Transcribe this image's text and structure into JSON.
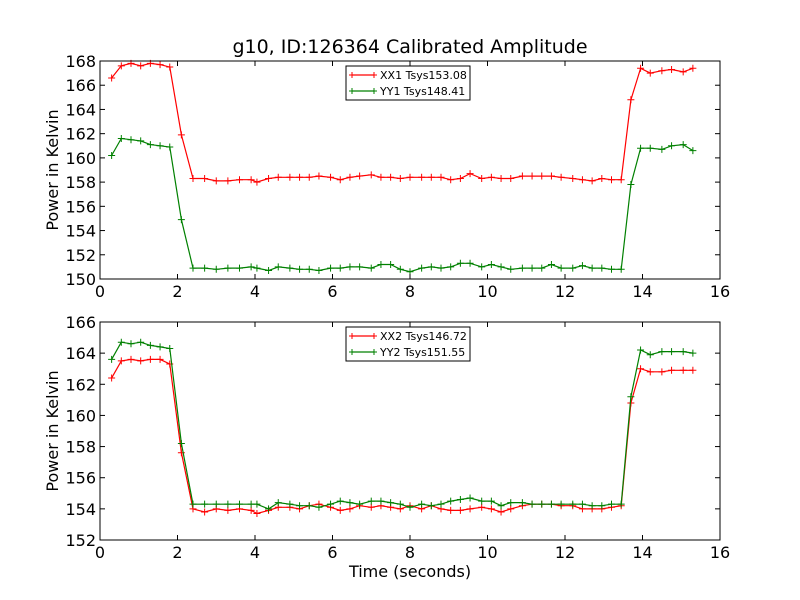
{
  "figure": {
    "title": "g10, ID:126364 Calibrated Amplitude"
  },
  "chart_data": [
    {
      "type": "line",
      "title": "g10, ID:126364 Calibrated Amplitude",
      "xlabel": "",
      "ylabel": "Power in Kelvin",
      "xlim": [
        0,
        16
      ],
      "ylim": [
        150,
        168
      ],
      "xticks": [
        0,
        2,
        4,
        6,
        8,
        10,
        12,
        14,
        16
      ],
      "yticks": [
        150,
        152,
        154,
        156,
        158,
        160,
        162,
        164,
        166,
        168
      ],
      "grid": false,
      "legend_position": "top-center",
      "x": [
        0.3,
        0.55,
        0.8,
        1.05,
        1.3,
        1.55,
        1.8,
        2.1,
        2.4,
        2.7,
        3.0,
        3.3,
        3.6,
        3.9,
        4.05,
        4.35,
        4.6,
        4.9,
        5.15,
        5.4,
        5.65,
        5.95,
        6.2,
        6.45,
        6.7,
        7.0,
        7.25,
        7.5,
        7.75,
        8.0,
        8.3,
        8.55,
        8.8,
        9.05,
        9.3,
        9.55,
        9.85,
        10.1,
        10.35,
        10.6,
        10.9,
        11.15,
        11.4,
        11.65,
        11.9,
        12.2,
        12.45,
        12.7,
        12.95,
        13.2,
        13.45,
        13.7,
        13.95,
        14.2,
        14.5,
        14.75,
        15.05,
        15.3
      ],
      "series": [
        {
          "name": "XX1 Tsys153.08",
          "color": "#ff0000",
          "values": [
            166.6,
            167.6,
            167.8,
            167.6,
            167.8,
            167.7,
            167.5,
            161.9,
            158.3,
            158.3,
            158.1,
            158.1,
            158.2,
            158.2,
            158.0,
            158.3,
            158.4,
            158.4,
            158.4,
            158.4,
            158.5,
            158.4,
            158.2,
            158.4,
            158.5,
            158.6,
            158.4,
            158.4,
            158.3,
            158.4,
            158.4,
            158.4,
            158.4,
            158.2,
            158.3,
            158.7,
            158.3,
            158.4,
            158.3,
            158.3,
            158.5,
            158.5,
            158.5,
            158.5,
            158.4,
            158.3,
            158.2,
            158.1,
            158.3,
            158.2,
            158.2,
            164.8,
            167.4,
            167.0,
            167.2,
            167.3,
            167.1,
            167.4
          ]
        },
        {
          "name": "YY1 Tsys148.41",
          "color": "#008000",
          "values": [
            160.2,
            161.6,
            161.5,
            161.4,
            161.1,
            161.0,
            160.9,
            154.9,
            150.9,
            150.9,
            150.8,
            150.9,
            150.9,
            151.0,
            150.9,
            150.7,
            151.0,
            150.9,
            150.8,
            150.8,
            150.7,
            150.9,
            150.9,
            151.0,
            151.0,
            150.9,
            151.2,
            151.2,
            150.8,
            150.6,
            150.9,
            151.0,
            150.9,
            151.0,
            151.3,
            151.3,
            151.0,
            151.2,
            151.0,
            150.8,
            150.9,
            150.9,
            150.9,
            151.2,
            150.9,
            150.9,
            151.1,
            150.9,
            150.9,
            150.8,
            150.8,
            157.8,
            160.8,
            160.8,
            160.7,
            161.0,
            161.1,
            160.6
          ]
        }
      ]
    },
    {
      "type": "line",
      "title": "",
      "xlabel": "Time (seconds)",
      "ylabel": "Power in Kelvin",
      "xlim": [
        0,
        16
      ],
      "ylim": [
        152,
        166
      ],
      "xticks": [
        0,
        2,
        4,
        6,
        8,
        10,
        12,
        14,
        16
      ],
      "yticks": [
        152,
        154,
        156,
        158,
        160,
        162,
        164,
        166
      ],
      "grid": false,
      "legend_position": "top-center",
      "x": [
        0.3,
        0.55,
        0.8,
        1.05,
        1.3,
        1.55,
        1.8,
        2.1,
        2.4,
        2.7,
        3.0,
        3.3,
        3.6,
        3.9,
        4.05,
        4.35,
        4.6,
        4.9,
        5.15,
        5.4,
        5.65,
        5.95,
        6.2,
        6.45,
        6.7,
        7.0,
        7.25,
        7.5,
        7.75,
        8.0,
        8.3,
        8.55,
        8.8,
        9.05,
        9.3,
        9.55,
        9.85,
        10.1,
        10.35,
        10.6,
        10.9,
        11.15,
        11.4,
        11.65,
        11.9,
        12.2,
        12.45,
        12.7,
        12.95,
        13.2,
        13.45,
        13.7,
        13.95,
        14.2,
        14.5,
        14.75,
        15.05,
        15.3
      ],
      "series": [
        {
          "name": "XX2 Tsys146.72",
          "color": "#ff0000",
          "values": [
            162.4,
            163.5,
            163.6,
            163.5,
            163.6,
            163.6,
            163.3,
            157.6,
            154.0,
            153.8,
            154.0,
            153.9,
            154.0,
            153.9,
            153.7,
            153.9,
            154.1,
            154.1,
            154.0,
            154.2,
            154.3,
            154.1,
            153.9,
            154.0,
            154.2,
            154.1,
            154.2,
            154.1,
            154.0,
            154.2,
            154.0,
            154.2,
            154.0,
            153.9,
            153.9,
            154.0,
            154.1,
            154.0,
            153.8,
            154.0,
            154.2,
            154.3,
            154.3,
            154.3,
            154.2,
            154.2,
            154.0,
            154.0,
            154.0,
            154.1,
            154.2,
            160.8,
            163.0,
            162.8,
            162.8,
            162.9,
            162.9,
            162.9
          ]
        },
        {
          "name": "YY2 Tsys151.55",
          "color": "#008000",
          "values": [
            163.6,
            164.7,
            164.6,
            164.7,
            164.5,
            164.4,
            164.3,
            158.2,
            154.3,
            154.3,
            154.3,
            154.3,
            154.3,
            154.3,
            154.3,
            154.0,
            154.4,
            154.3,
            154.2,
            154.2,
            154.1,
            154.3,
            154.5,
            154.4,
            154.3,
            154.5,
            154.5,
            154.4,
            154.3,
            154.1,
            154.3,
            154.2,
            154.3,
            154.5,
            154.6,
            154.7,
            154.5,
            154.5,
            154.2,
            154.4,
            154.4,
            154.3,
            154.3,
            154.3,
            154.3,
            154.3,
            154.3,
            154.2,
            154.2,
            154.3,
            154.3,
            161.2,
            164.2,
            163.9,
            164.1,
            164.1,
            164.1,
            164.0
          ]
        }
      ]
    }
  ]
}
